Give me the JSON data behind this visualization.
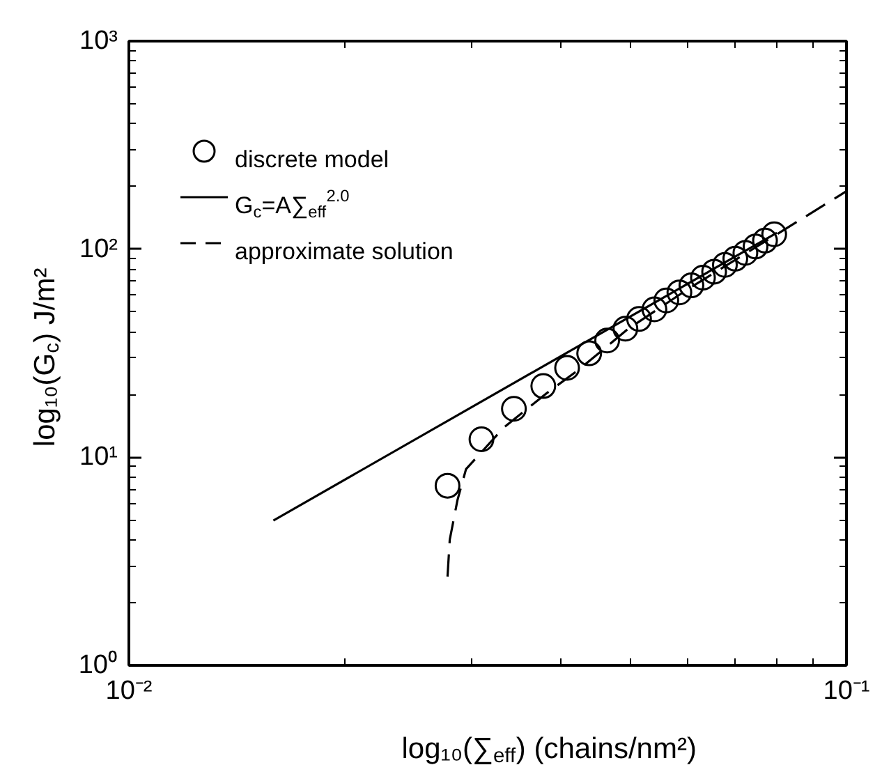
{
  "chart_data": {
    "type": "scatter",
    "xlabel": "log₁₀(∑$_{eff}$)  (chains/nm²)",
    "ylabel": "log₁₀(G$_{c}$)  J/m²",
    "log": "xy",
    "xlim": [
      0.01,
      0.1
    ],
    "ylim": [
      1,
      1000
    ],
    "xticks": [
      {
        "value": 0.01,
        "label": "10⁻²"
      },
      {
        "value": 0.1,
        "label": "10⁻¹"
      }
    ],
    "yticks": [
      {
        "value": 1,
        "label": "10⁰"
      },
      {
        "value": 10,
        "label": "10¹"
      },
      {
        "value": 100,
        "label": "10²"
      },
      {
        "value": 1000,
        "label": "10³"
      }
    ],
    "legend": "top left",
    "series": [
      {
        "name": "discrete model",
        "marker": "circle",
        "color": "#000000",
        "x": [
          0.0278,
          0.031,
          0.0344,
          0.0378,
          0.0408,
          0.0438,
          0.0464,
          0.0492,
          0.0514,
          0.054,
          0.0561,
          0.0585,
          0.0608,
          0.0631,
          0.0654,
          0.0677,
          0.07,
          0.0723,
          0.0747,
          0.077,
          0.0793
        ],
        "values": [
          7.3,
          12.2,
          17.1,
          22.0,
          26.9,
          31.6,
          36.4,
          41.5,
          46.2,
          51.4,
          56.7,
          62,
          67,
          73,
          78,
          84,
          90,
          96,
          103,
          110,
          118
        ]
      },
      {
        "name": "G$_{c}$=A∑$_{eff}$$^{2.0}$",
        "type": "line",
        "line_style": "solid",
        "color": "#000000",
        "x": [
          0.0159,
          0.08
        ],
        "values": [
          4.97,
          120
        ]
      },
      {
        "name": "approximate solution",
        "type": "line",
        "line_style": "dashed",
        "color": "#000000",
        "x": [
          0.0278,
          0.028,
          0.0287,
          0.0295,
          0.0333,
          0.0382,
          0.0425,
          0.0495,
          0.06,
          0.08,
          0.1
        ],
        "values": [
          2.67,
          4.02,
          6.22,
          8.77,
          13.9,
          20.3,
          26.6,
          41.1,
          64,
          118,
          190
        ]
      }
    ]
  }
}
